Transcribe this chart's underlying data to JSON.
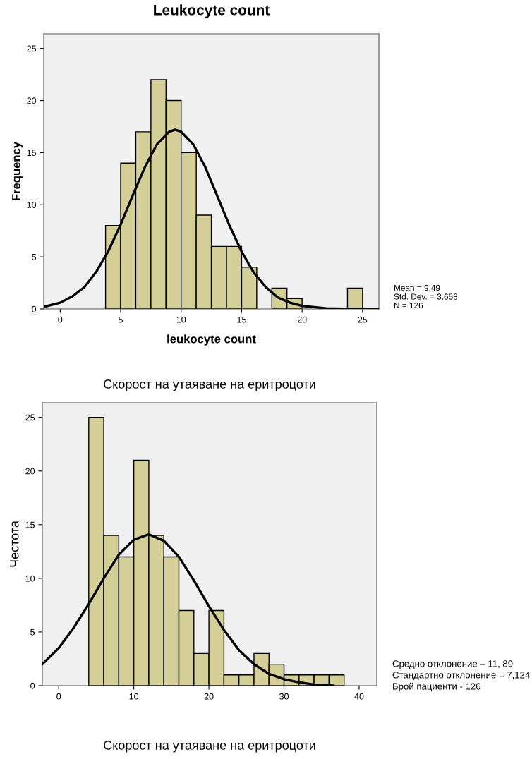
{
  "chart_data": [
    {
      "type": "histogram",
      "title": "Leukocyte count",
      "xlabel": "leukocyte count",
      "ylabel": "Frequency",
      "bins": [
        3.75,
        5.0,
        6.25,
        7.5,
        8.75,
        10.0,
        11.25,
        12.5,
        13.75,
        15.0,
        16.25,
        17.5,
        18.75,
        20.0,
        21.25,
        22.5,
        23.75,
        25.0
      ],
      "values": [
        8,
        14,
        17,
        22,
        20,
        15,
        9,
        6,
        6,
        4,
        0,
        2,
        1,
        0,
        0,
        0,
        2
      ],
      "color": "#d3cf96",
      "series": [
        {
          "type": "line",
          "color": "#000000",
          "x": [
            -1.36,
            0,
            1,
            2,
            3,
            4,
            5,
            6,
            7,
            8,
            9,
            9.5,
            10,
            11,
            12,
            13,
            14,
            15,
            16,
            17,
            18,
            19,
            20,
            22,
            24,
            26.35
          ],
          "values": [
            0.2,
            0.6,
            1.2,
            2.1,
            3.6,
            5.6,
            8.1,
            10.9,
            13.6,
            15.8,
            17.0,
            17.2,
            17.0,
            15.8,
            13.6,
            10.8,
            8.0,
            5.5,
            3.5,
            2.1,
            1.1,
            0.6,
            0.3,
            0.05,
            0,
            0
          ]
        }
      ],
      "xlim": [
        -1.36,
        26.35
      ],
      "ylim": [
        0,
        26.4
      ],
      "xticks": [
        0,
        5,
        10,
        15,
        20,
        25
      ],
      "yticks": [
        0,
        5,
        10,
        15,
        20,
        25
      ],
      "grid": false,
      "annotations": [
        "Mean = 9,49",
        "Std. Dev. = 3,658",
        "N = 126"
      ]
    },
    {
      "type": "histogram",
      "title": "Скорост на утаяване на еритроцоти",
      "xlabel": "Скорост на утаяване на еритроцоти",
      "ylabel": "Честота",
      "bins": [
        4,
        6,
        8,
        10,
        12,
        14,
        16,
        18,
        20,
        22,
        24,
        26,
        28,
        30,
        32,
        34,
        36,
        38
      ],
      "values": [
        25,
        14,
        12,
        21,
        14,
        12,
        7,
        3,
        7,
        1,
        1,
        3,
        2,
        1,
        1,
        1,
        1
      ],
      "color": "#d3cf96",
      "series": [
        {
          "type": "line",
          "color": "#000000",
          "x": [
            -2.18,
            0,
            2,
            4,
            6,
            8,
            10,
            12,
            14,
            16,
            18,
            20,
            22,
            24,
            26,
            28,
            30,
            32,
            34,
            36.6
          ],
          "values": [
            2.0,
            3.5,
            5.4,
            7.6,
            10.0,
            12.2,
            13.6,
            14.1,
            13.5,
            12.0,
            9.8,
            7.4,
            5.2,
            3.3,
            2.0,
            1.1,
            0.6,
            0.3,
            0.1,
            0
          ]
        }
      ],
      "xlim": [
        -2.18,
        42.35
      ],
      "ylim": [
        0,
        26.36
      ],
      "xticks": [
        0,
        10,
        20,
        30,
        40
      ],
      "yticks": [
        0,
        5,
        10,
        15,
        20,
        25
      ],
      "grid": false,
      "annotations": [
        "Средно отклонение – 11, 89",
        "Стандартно отклонение = 7,124",
        "Брой пациенти - 126"
      ]
    }
  ]
}
